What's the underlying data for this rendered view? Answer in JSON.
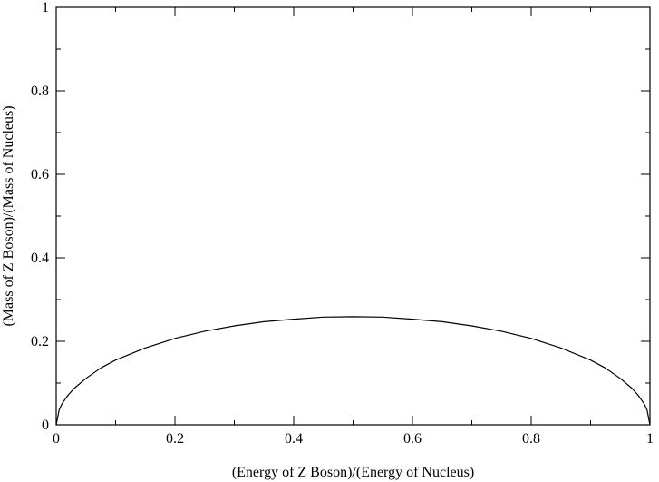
{
  "chart_data": {
    "type": "line",
    "title": "",
    "xlabel": "(Energy of Z Boson)/(Energy of Nucleus)",
    "ylabel": "(Mass of Z Boson)/(Mass of Nucleus)",
    "xlim": [
      0,
      1
    ],
    "ylim": [
      0,
      1
    ],
    "xticks": [
      "0",
      "0.2",
      "0.4",
      "0.6",
      "0.8",
      "1"
    ],
    "yticks": [
      "0",
      "0.2",
      "0.4",
      "0.6",
      "0.8",
      "1"
    ],
    "grid": false,
    "legend": "none",
    "series": [
      {
        "color": "#000000",
        "x": [
          0,
          0.005,
          0.01,
          0.02,
          0.03,
          0.05,
          0.075,
          0.1,
          0.15,
          0.2,
          0.25,
          0.3,
          0.35,
          0.4,
          0.45,
          0.5,
          0.55,
          0.6,
          0.65,
          0.7,
          0.75,
          0.8,
          0.85,
          0.9,
          0.925,
          0.95,
          0.97,
          0.98,
          0.99,
          0.995,
          1
        ],
        "y": [
          0,
          0.036,
          0.051,
          0.071,
          0.087,
          0.111,
          0.136,
          0.155,
          0.184,
          0.207,
          0.224,
          0.237,
          0.247,
          0.253,
          0.258,
          0.259,
          0.258,
          0.253,
          0.247,
          0.237,
          0.224,
          0.207,
          0.184,
          0.155,
          0.136,
          0.111,
          0.087,
          0.071,
          0.051,
          0.036,
          0
        ]
      }
    ]
  }
}
